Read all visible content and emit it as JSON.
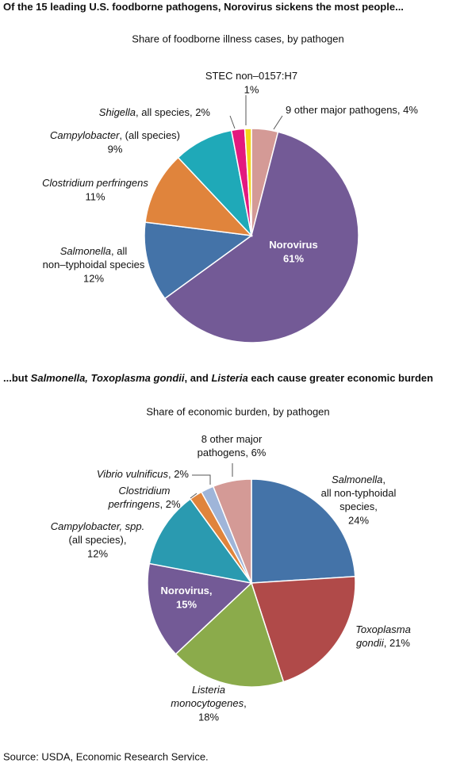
{
  "chart_data": [
    {
      "type": "pie",
      "title": [
        {
          "text": "Of the 15 leading U.S. foodborne pathogens, Norovirus sickens the most people..."
        }
      ],
      "subtitle": "Share of foodborne illness cases, by pathogen",
      "categories": [
        [
          [
            {
              "text": "9 other major pathogens, "
            }
          ]
        ],
        [
          [
            {
              "text": "Norovirus"
            }
          ]
        ],
        [
          [
            {
              "text": "Salmonella",
              "italic": true
            },
            {
              "text": ", all"
            }
          ],
          [
            {
              "text": "non–typhoidal species"
            }
          ]
        ],
        [
          [
            {
              "text": "Clostridium perfringens",
              "italic": true
            }
          ]
        ],
        [
          [
            {
              "text": "Campylobacter",
              "italic": true
            },
            {
              "text": ", (all species)"
            }
          ]
        ],
        [
          [
            {
              "text": "Shigella",
              "italic": true
            },
            {
              "text": ", all species, "
            }
          ]
        ],
        [
          [
            {
              "text": "STEC non–0157:H7"
            }
          ]
        ]
      ],
      "values": [
        4,
        61,
        12,
        11,
        9,
        2,
        1
      ],
      "value_labels": [
        "4%",
        "61%",
        "12%",
        "11%",
        "9%",
        "2%",
        "1%"
      ],
      "colors": [
        "#d49a96",
        "#735a96",
        "#4473a8",
        "#e0843c",
        "#1fa9b8",
        "#e3197f",
        "#f3d61a"
      ]
    },
    {
      "type": "pie",
      "title": [
        {
          "text": "...but "
        },
        {
          "text": "Salmonella, Toxoplasma gondii",
          "italic": true
        },
        {
          "text": ", and "
        },
        {
          "text": "Listeria",
          "italic": true
        },
        {
          "text": " each cause greater economic burden"
        }
      ],
      "subtitle": "Share of economic burden, by pathogen",
      "categories": [
        [
          [
            {
              "text": "Salmonella",
              "italic": true
            },
            {
              "text": ","
            }
          ],
          [
            {
              "text": "all non-typhoidal"
            }
          ],
          [
            {
              "text": "species,"
            }
          ]
        ],
        [
          [
            {
              "text": "Toxoplasma",
              "italic": true
            }
          ],
          [
            {
              "text": "gondii",
              "italic": true
            },
            {
              "text": ", "
            }
          ]
        ],
        [
          [
            {
              "text": "Listeria",
              "italic": true
            }
          ],
          [
            {
              "text": "monocytogenes",
              "italic": true
            },
            {
              "text": ","
            }
          ]
        ],
        [
          [
            {
              "text": "Norovirus,"
            }
          ]
        ],
        [
          [
            {
              "text": "Campylobacter, spp.",
              "italic": true
            }
          ],
          [
            {
              "text": "(all species),"
            }
          ]
        ],
        [
          [
            {
              "text": "Clostridium",
              "italic": true
            }
          ],
          [
            {
              "text": "perfringens",
              "italic": true
            },
            {
              "text": ", "
            }
          ]
        ],
        [
          [
            {
              "text": "Vibrio vulnificus",
              "italic": true
            },
            {
              "text": ", "
            }
          ]
        ],
        [
          [
            {
              "text": "8 other major"
            }
          ],
          [
            {
              "text": "pathogens, "
            }
          ]
        ]
      ],
      "values": [
        24,
        21,
        18,
        15,
        12,
        2,
        2,
        6
      ],
      "value_labels": [
        "24%",
        "21%",
        "18%",
        "15%",
        "12%",
        "2%",
        "2%",
        "6%"
      ],
      "colors": [
        "#4473a8",
        "#b04a49",
        "#8bab4b",
        "#735a96",
        "#2a9ab0",
        "#e0843c",
        "#9fb5d9",
        "#d49a96"
      ]
    }
  ],
  "source": "Source: USDA, Economic Research Service."
}
